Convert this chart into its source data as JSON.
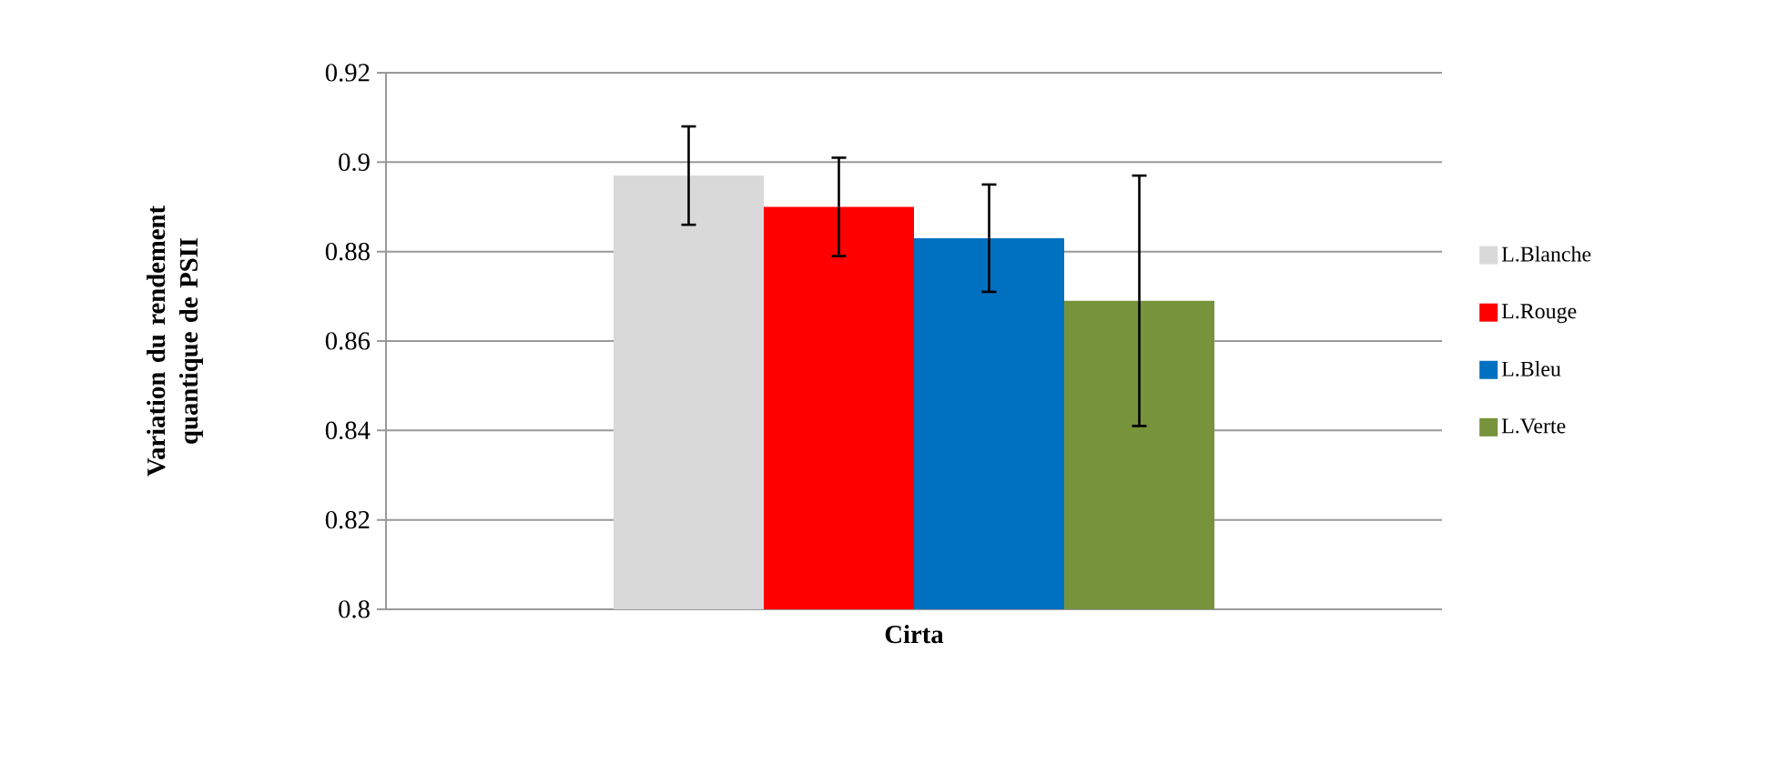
{
  "chart_data": {
    "type": "bar",
    "ylabel": "Variation du rendement quantique de PSII",
    "categories": [
      "Cirta"
    ],
    "series": [
      {
        "name": "L.Blanche",
        "color": "#d9d9d9",
        "values": [
          0.897
        ],
        "errors": [
          0.011
        ]
      },
      {
        "name": "L.Rouge",
        "color": "#ff0000",
        "values": [
          0.89
        ],
        "errors": [
          0.011
        ]
      },
      {
        "name": "L.Bleu",
        "color": "#0070c0",
        "values": [
          0.883
        ],
        "errors": [
          0.012
        ]
      },
      {
        "name": "L.Verte",
        "color": "#77933c",
        "values": [
          0.869
        ],
        "errors": [
          0.028
        ]
      }
    ],
    "ylim": [
      0.8,
      0.92
    ],
    "yticks": [
      0.8,
      0.82,
      0.84,
      0.86,
      0.88,
      0.9,
      0.92
    ],
    "grid": "y",
    "legend": "right"
  }
}
